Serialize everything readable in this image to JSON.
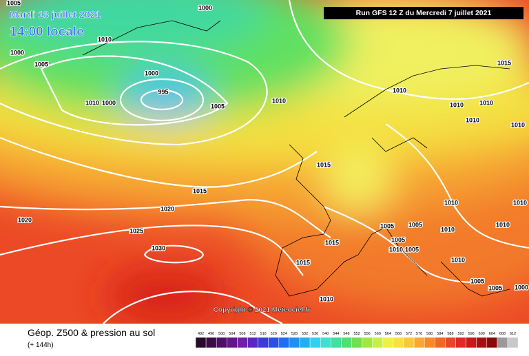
{
  "header": {
    "date": "Mardi 13 juillet 2021",
    "time": "14:00 locale",
    "run": "Run GFS 12 Z du Mercredi 7 juillet 2021"
  },
  "copyright": "Copyright © 2021 Meteociel.fr",
  "footer": {
    "title": "Géop. Z500 & pression au sol",
    "subtitle": "(+ 144h)"
  },
  "legend": {
    "ticks": [
      492,
      496,
      500,
      504,
      508,
      512,
      516,
      520,
      524,
      528,
      532,
      536,
      540,
      544,
      548,
      552,
      556,
      560,
      564,
      568,
      572,
      576,
      580,
      584,
      588,
      592,
      596,
      600,
      604,
      608,
      612
    ],
    "colors": [
      "#2a0a2a",
      "#3c0c46",
      "#50106a",
      "#62168a",
      "#7020a8",
      "#5a28c0",
      "#3c3cd8",
      "#2850e8",
      "#1e6ef0",
      "#2090f0",
      "#20b0f0",
      "#30d0f0",
      "#40e0d0",
      "#40e0a0",
      "#50e070",
      "#70e050",
      "#a0e840",
      "#c8f040",
      "#f0f040",
      "#f8e040",
      "#f8c838",
      "#f8a830",
      "#f88828",
      "#f06828",
      "#e84828",
      "#e02828",
      "#c81818",
      "#a81010",
      "#880808",
      "#9a9a9a",
      "#c8c8c8"
    ]
  },
  "isobars": [
    1005,
    1000,
    1010,
    1000,
    1005,
    1000,
    995,
    1010,
    1000,
    1005,
    1010,
    1015,
    1010,
    1010,
    1010,
    1010,
    1010,
    1015,
    1015,
    1020,
    1020,
    1025,
    1030,
    1010,
    1010,
    1010,
    1010,
    1005,
    1005,
    1005,
    1015,
    1010,
    1005,
    1015,
    1010,
    1005,
    1005,
    1000,
    1010
  ]
}
